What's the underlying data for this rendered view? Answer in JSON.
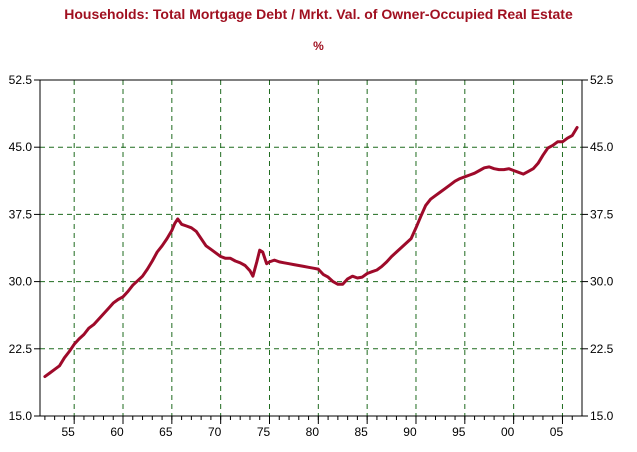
{
  "header": {
    "title": "Households: Total Mortgage Debt / Mrkt. Val. of Owner-Occupied Real Estate",
    "subtitle": "%"
  },
  "colors": {
    "line": "#9e0a2a",
    "title": "#a01020",
    "grid": "#1f6b1f",
    "frame": "#000000"
  },
  "chart_data": {
    "type": "line",
    "title": "Households: Total Mortgage Debt / Mrkt. Val. of Owner-Occupied Real Estate",
    "subtitle": "%",
    "ylim": [
      15,
      52.5
    ],
    "xlim": [
      1951.5,
      2007
    ],
    "yticks": [
      "15.0",
      "22.5",
      "30.0",
      "37.5",
      "45.0",
      "52.5"
    ],
    "xticks": [
      "55",
      "60",
      "65",
      "70",
      "75",
      "80",
      "85",
      "90",
      "95",
      "00",
      "05"
    ],
    "grid": true,
    "legend": "none",
    "series": [
      {
        "x": [
          1952.0,
          1952.5,
          1953.0,
          1953.5,
          1954.0,
          1954.5,
          1955.0,
          1955.5,
          1956.0,
          1956.5,
          1957.0,
          1957.5,
          1958.0,
          1958.5,
          1959.0,
          1959.5,
          1960.0,
          1960.5,
          1961.0,
          1961.5,
          1962.0,
          1962.5,
          1963.0,
          1963.5,
          1964.0,
          1964.5,
          1965.0,
          1965.3,
          1965.6,
          1966.0,
          1966.5,
          1967.0,
          1967.5,
          1968.0,
          1968.5,
          1969.0,
          1969.5,
          1970.0,
          1970.5,
          1971.0,
          1971.5,
          1972.0,
          1972.5,
          1973.0,
          1973.3,
          1973.7,
          1974.0,
          1974.3,
          1974.7,
          1975.0,
          1975.5,
          1976.0,
          1976.5,
          1977.0,
          1977.5,
          1978.0,
          1978.5,
          1979.0,
          1979.5,
          1980.0,
          1980.5,
          1981.0,
          1981.5,
          1982.0,
          1982.5,
          1983.0,
          1983.5,
          1984.0,
          1984.5,
          1985.0,
          1985.5,
          1986.0,
          1986.5,
          1987.0,
          1987.5,
          1988.0,
          1988.5,
          1989.0,
          1989.5,
          1990.0,
          1990.5,
          1991.0,
          1991.5,
          1992.0,
          1992.5,
          1993.0,
          1993.5,
          1994.0,
          1994.5,
          1995.0,
          1995.5,
          1996.0,
          1996.5,
          1997.0,
          1997.5,
          1998.0,
          1998.5,
          1999.0,
          1999.5,
          2000.0,
          2000.5,
          2001.0,
          2001.5,
          2002.0,
          2002.5,
          2003.0,
          2003.5,
          2004.0,
          2004.5,
          2005.0,
          2005.5,
          2006.0,
          2006.5
        ],
        "values": [
          19.4,
          19.8,
          20.2,
          20.6,
          21.5,
          22.2,
          23.0,
          23.6,
          24.1,
          24.8,
          25.2,
          25.8,
          26.4,
          27.0,
          27.6,
          28.0,
          28.3,
          28.9,
          29.6,
          30.1,
          30.6,
          31.4,
          32.3,
          33.3,
          34.0,
          34.8,
          35.7,
          36.5,
          37.0,
          36.4,
          36.2,
          36.0,
          35.6,
          34.8,
          34.0,
          33.6,
          33.2,
          32.8,
          32.6,
          32.6,
          32.3,
          32.1,
          31.8,
          31.2,
          30.6,
          32.2,
          33.5,
          33.3,
          32.0,
          32.2,
          32.4,
          32.2,
          32.1,
          32.0,
          31.9,
          31.8,
          31.7,
          31.6,
          31.5,
          31.4,
          30.8,
          30.5,
          30.0,
          29.7,
          29.7,
          30.3,
          30.6,
          30.4,
          30.5,
          30.9,
          31.1,
          31.3,
          31.7,
          32.2,
          32.8,
          33.3,
          33.8,
          34.3,
          34.8,
          36.0,
          37.3,
          38.5,
          39.2,
          39.6,
          40.0,
          40.4,
          40.8,
          41.2,
          41.5,
          41.7,
          41.9,
          42.1,
          42.4,
          42.7,
          42.8,
          42.6,
          42.5,
          42.5,
          42.6,
          42.4,
          42.2,
          42.0,
          42.3,
          42.6,
          43.2,
          44.1,
          44.9,
          45.2,
          45.6,
          45.6,
          46.0,
          46.3,
          47.2
        ]
      }
    ]
  }
}
